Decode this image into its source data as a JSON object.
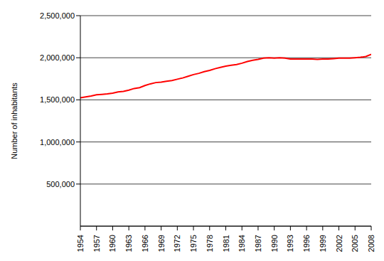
{
  "chart_data": {
    "type": "line",
    "y_label": "Number of inhabitants",
    "x": [
      1954,
      1955,
      1956,
      1957,
      1958,
      1959,
      1960,
      1961,
      1962,
      1963,
      1964,
      1965,
      1966,
      1967,
      1968,
      1969,
      1970,
      1971,
      1972,
      1973,
      1974,
      1975,
      1976,
      1977,
      1978,
      1979,
      1980,
      1981,
      1982,
      1983,
      1984,
      1985,
      1986,
      1987,
      1988,
      1989,
      1990,
      1991,
      1992,
      1993,
      1994,
      1995,
      1996,
      1997,
      1998,
      1999,
      2000,
      2001,
      2002,
      2003,
      2004,
      2005,
      2006,
      2007,
      2008
    ],
    "values": [
      1525000,
      1535000,
      1545000,
      1560000,
      1565000,
      1570000,
      1580000,
      1595000,
      1600000,
      1615000,
      1635000,
      1645000,
      1670000,
      1690000,
      1705000,
      1710000,
      1720000,
      1730000,
      1745000,
      1760000,
      1780000,
      1800000,
      1815000,
      1835000,
      1850000,
      1870000,
      1885000,
      1900000,
      1910000,
      1920000,
      1935000,
      1955000,
      1970000,
      1980000,
      1995000,
      2000000,
      1995000,
      2000000,
      1995000,
      1985000,
      1985000,
      1985000,
      1985000,
      1985000,
      1980000,
      1985000,
      1985000,
      1990000,
      1995000,
      1995000,
      1995000,
      2000000,
      2005000,
      2015000,
      2040000
    ],
    "color": "#ff0000",
    "xlim": [
      1954,
      2008
    ],
    "xticks": [
      1954,
      1957,
      1960,
      1963,
      1966,
      1969,
      1972,
      1975,
      1978,
      1981,
      1984,
      1987,
      1990,
      1993,
      1996,
      1999,
      2002,
      2005,
      2008
    ],
    "ylim": [
      0,
      2500000
    ],
    "yticks": [
      {
        "value": 500000,
        "label": "500,000"
      },
      {
        "value": 1000000,
        "label": "1,000,000"
      },
      {
        "value": 1500000,
        "label": "1,500,000"
      },
      {
        "value": 2000000,
        "label": "2,000,000"
      },
      {
        "value": 2500000,
        "label": "2,500,000"
      }
    ],
    "grid": true
  }
}
